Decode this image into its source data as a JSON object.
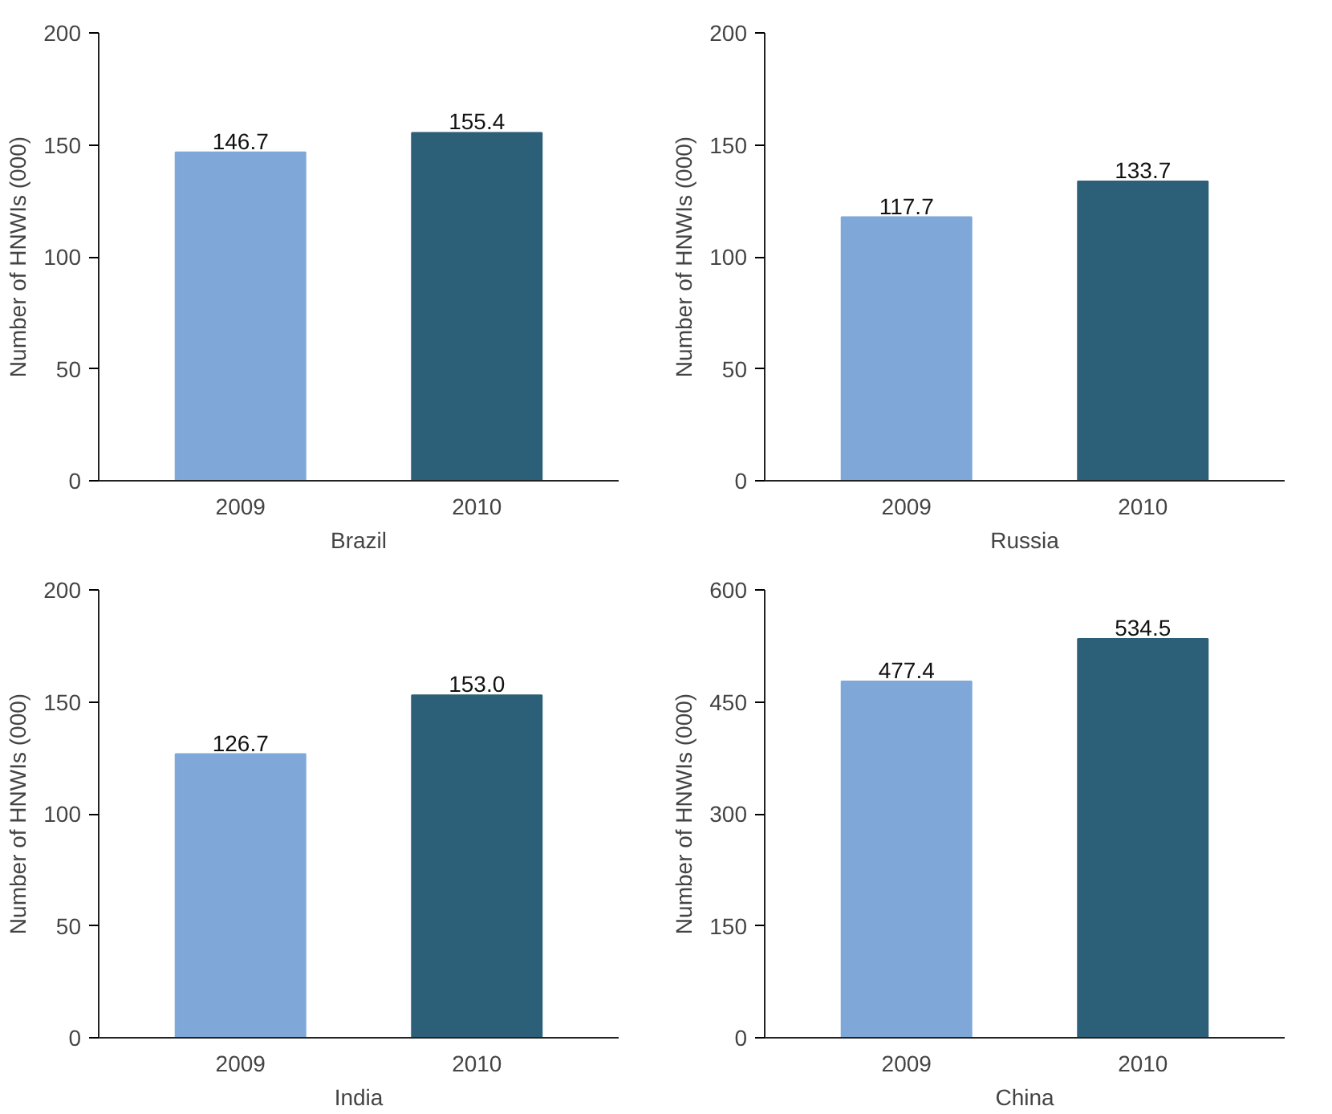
{
  "chart_data": [
    {
      "type": "bar",
      "categories": [
        "2009",
        "2010"
      ],
      "values": [
        146.7,
        155.4
      ],
      "colors": [
        "#7fa8d9",
        "#2c5f78"
      ],
      "xlabel": "Brazil",
      "ylabel": "Number of HNWIs (000)",
      "ylim": [
        0,
        200
      ],
      "yticks": [
        0,
        50,
        100,
        150,
        200
      ],
      "data_labels": true
    },
    {
      "type": "bar",
      "categories": [
        "2009",
        "2010"
      ],
      "values": [
        117.7,
        133.7
      ],
      "colors": [
        "#7fa8d9",
        "#2c5f78"
      ],
      "xlabel": "Russia",
      "ylabel": "Number of HNWIs (000)",
      "ylim": [
        0,
        200
      ],
      "yticks": [
        0,
        50,
        100,
        150,
        200
      ],
      "data_labels": true
    },
    {
      "type": "bar",
      "categories": [
        "2009",
        "2010"
      ],
      "values": [
        126.7,
        153.0
      ],
      "value_labels": [
        "126.7",
        "153.0"
      ],
      "colors": [
        "#7fa8d9",
        "#2c5f78"
      ],
      "xlabel": "India",
      "ylabel": "Number of HNWIs (000)",
      "ylim": [
        0,
        200
      ],
      "yticks": [
        0,
        50,
        100,
        150,
        200
      ]
    },
    {
      "type": "bar",
      "categories": [
        "2009",
        "2010"
      ],
      "values": [
        477.4,
        534.5
      ],
      "colors": [
        "#7fa8d9",
        "#2c5f78"
      ],
      "xlabel": "China",
      "ylabel": "Number of HNWIs (000)",
      "ylim": [
        0,
        600
      ],
      "yticks": [
        0,
        150,
        300,
        450,
        600
      ],
      "data_labels": true
    }
  ]
}
